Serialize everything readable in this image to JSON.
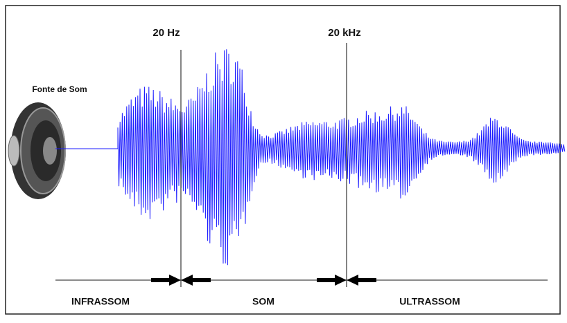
{
  "labels": {
    "low_frequency": "20 Hz",
    "high_frequency": "20 kHz",
    "source": "Fonte de Som"
  },
  "regions": [
    "INFRASSOM",
    "SOM",
    "ULTRASSOM"
  ]
}
